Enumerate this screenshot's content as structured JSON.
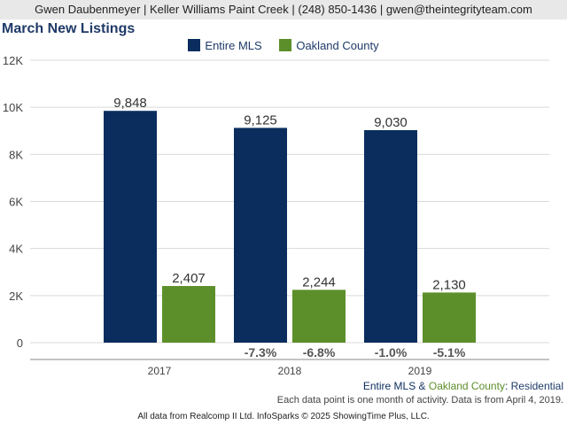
{
  "header": {
    "agent_line": "Gwen Daubenmeyer | Keller Williams Paint Creek | (248) 850-1436 | gwen@theintegrityteam.com"
  },
  "chart_data": {
    "type": "bar",
    "title": "March New Listings",
    "categories": [
      "2017",
      "2018",
      "2019"
    ],
    "series": [
      {
        "name": "Entire MLS",
        "values": [
          9848,
          9125,
          9030
        ],
        "value_labels": [
          "9,848",
          "9,125",
          "9,030"
        ],
        "change_labels": [
          "",
          "-7.3%",
          "-1.0%"
        ],
        "color": "#0b2d5e"
      },
      {
        "name": "Oakland County",
        "values": [
          2407,
          2244,
          2130
        ],
        "value_labels": [
          "2,407",
          "2,244",
          "2,130"
        ],
        "change_labels": [
          "",
          "-6.8%",
          "-5.1%"
        ],
        "color": "#5c8f2a"
      }
    ],
    "ylim": [
      0,
      12000
    ],
    "yticks": [
      0,
      2000,
      4000,
      6000,
      8000,
      10000,
      12000
    ],
    "ytick_labels": [
      "0",
      "2K",
      "4K",
      "6K",
      "8K",
      "10K",
      "12K"
    ],
    "grid": true,
    "legend_position": "top"
  },
  "footer": {
    "series_part1": "Entire MLS",
    "series_amp": " & ",
    "series_part2": "Oakland County",
    "series_part3": ": Residential",
    "note": "Each data point is one month of activity. Data is from April 4, 2019.",
    "credit": "All data from Realcomp II Ltd. InfoSparks © 2025 ShowingTime Plus, LLC."
  },
  "colors": {
    "header_bg": "#e8e8e8",
    "title": "#1f3a68",
    "grid": "#d9d9d9",
    "change_text": "#555555"
  }
}
